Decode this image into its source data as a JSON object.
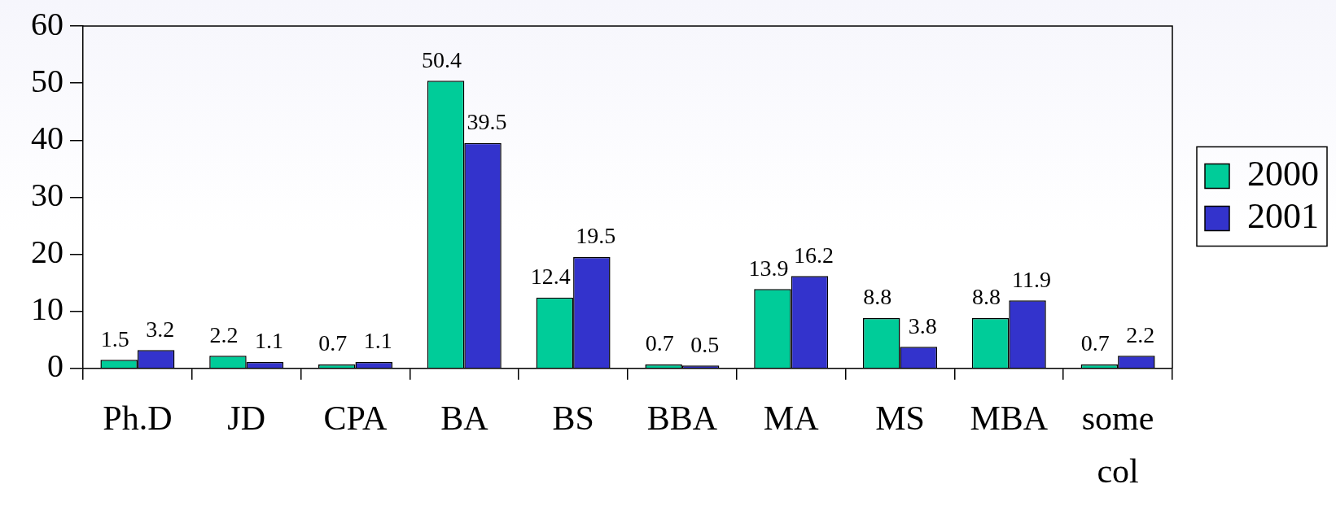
{
  "chart_data": {
    "type": "bar",
    "categories": [
      "Ph.D",
      "JD",
      "CPA",
      "BA",
      "BS",
      "BBA",
      "MA",
      "MS",
      "MBA",
      "some col"
    ],
    "series": [
      {
        "name": "2000",
        "color": "#00cc99",
        "values": [
          1.5,
          2.2,
          0.7,
          50.4,
          12.4,
          0.7,
          13.9,
          8.8,
          8.8,
          0.7
        ]
      },
      {
        "name": "2001",
        "color": "#3333cc",
        "values": [
          3.2,
          1.1,
          1.1,
          39.5,
          19.5,
          0.5,
          16.2,
          3.8,
          11.9,
          2.2
        ]
      }
    ],
    "ylim": [
      0,
      60
    ],
    "yticks": [
      0,
      10,
      20,
      30,
      40,
      50,
      60
    ],
    "grid": false,
    "legend": "right",
    "data_labels": true
  }
}
